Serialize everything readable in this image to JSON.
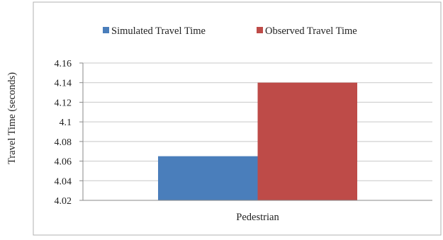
{
  "chart_data": {
    "type": "bar",
    "categories": [
      "Pedestrian"
    ],
    "series": [
      {
        "name": "Simulated Travel Time",
        "values": [
          4.065
        ],
        "color": "#4a7ebb"
      },
      {
        "name": "Observed Travel Time",
        "values": [
          4.14
        ],
        "color": "#be4b48"
      }
    ],
    "title": "",
    "xlabel": "",
    "ylabel": "Travel Time (seconds)",
    "ylim": [
      4.02,
      4.16
    ],
    "yticks": [
      "4.02",
      "4.04",
      "4.06",
      "4.08",
      "4.1",
      "4.12",
      "4.14",
      "4.16"
    ],
    "grid": true,
    "legend_position": "top"
  }
}
